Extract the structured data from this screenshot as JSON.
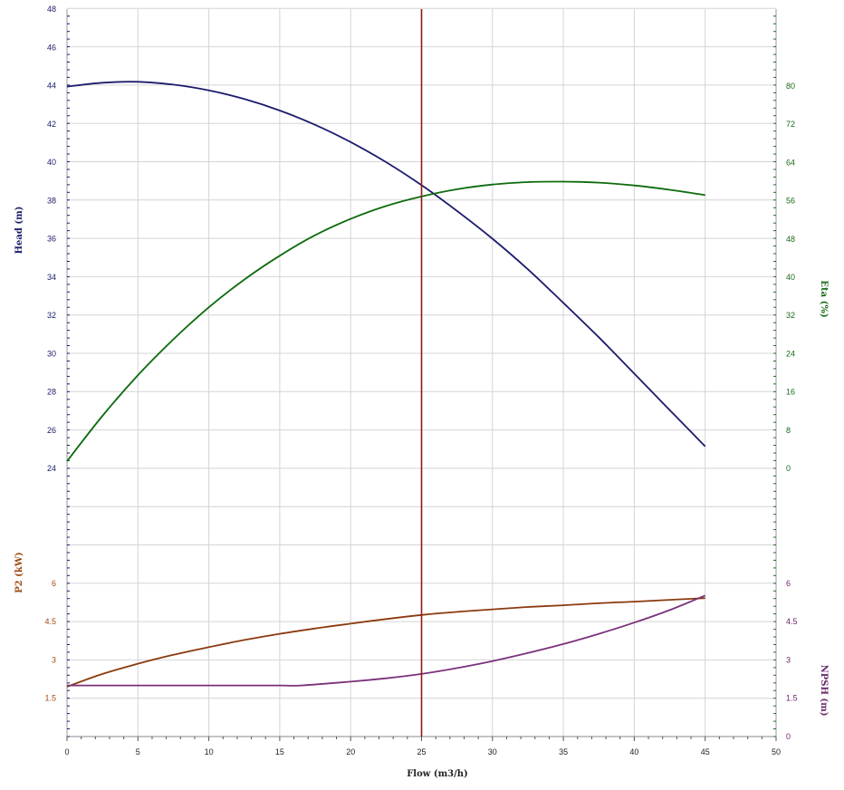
{
  "chart_data": {
    "type": "line",
    "xlabel": "Flow (m3/h)",
    "x_ticks": [
      "0",
      "5",
      "10",
      "15",
      "20",
      "25",
      "30",
      "35",
      "40",
      "45",
      "50"
    ],
    "xlim": [
      0,
      50
    ],
    "grid": true,
    "duty_point_x": 25,
    "panels": [
      {
        "name": "upper",
        "left_axis": {
          "label": "Head (m)",
          "color": "#1a1a6b",
          "ylim": [
            24,
            48
          ],
          "ticks": [
            "24",
            "26",
            "28",
            "30",
            "32",
            "34",
            "36",
            "38",
            "40",
            "42",
            "44",
            "46",
            "48"
          ]
        },
        "right_axis": {
          "label": "Eta (%)",
          "color": "#1a6b1a",
          "ylim": [
            0,
            80
          ],
          "ticks": [
            "0",
            "8",
            "16",
            "24",
            "32",
            "40",
            "48",
            "56",
            "64",
            "72",
            "80"
          ]
        },
        "series": [
          {
            "axis": "left",
            "color": "#1c1c6e",
            "x": [
              0,
              2.5,
              5,
              7.5,
              10,
              12.5,
              15,
              17.5,
              20,
              22.5,
              25,
              27.5,
              30,
              32.5,
              35,
              37.5,
              40,
              42.5,
              45
            ],
            "y": [
              43.95,
              44.15,
              44.2,
              44.05,
              43.75,
              43.3,
              42.7,
              41.95,
              41.05,
              40.0,
              38.8,
              37.45,
              36.0,
              34.4,
              32.65,
              30.85,
              28.95,
              27.05,
              25.15
            ]
          },
          {
            "axis": "right",
            "color": "#0d6b0d",
            "x": [
              0,
              2.5,
              5,
              7.5,
              10,
              12.5,
              15,
              17.5,
              20,
              22.5,
              25,
              27.5,
              30,
              32.5,
              35,
              37.5,
              40,
              42.5,
              45
            ],
            "y": [
              1.5,
              11.0,
              19.5,
              27.0,
              33.7,
              39.5,
              44.5,
              48.8,
              52.2,
              54.9,
              56.9,
              58.4,
              59.4,
              59.9,
              60.0,
              59.8,
              59.2,
              58.3,
              57.2
            ]
          }
        ]
      },
      {
        "name": "lower",
        "left_axis": {
          "label": "P2 (kW)",
          "color": "#a04a12",
          "ylim": [
            0,
            6.5
          ],
          "ticks": [
            "1.5",
            "3",
            "4.5",
            "6"
          ]
        },
        "right_axis": {
          "label": "NPSH (m)",
          "color": "#6a2a6a",
          "ylim": [
            0,
            8.5
          ],
          "ticks": [
            "0",
            "1.5",
            "3",
            "4.5",
            "6"
          ]
        },
        "series": [
          {
            "axis": "left",
            "color": "#8b3a0e",
            "x": [
              0,
              2.5,
              5,
              7.5,
              10,
              12.5,
              15,
              17.5,
              20,
              22.5,
              25,
              27.5,
              30,
              32.5,
              35,
              37.5,
              40,
              42.5,
              45
            ],
            "y": [
              1.95,
              2.45,
              2.85,
              3.2,
              3.5,
              3.78,
              4.02,
              4.23,
              4.42,
              4.6,
              4.76,
              4.88,
              4.98,
              5.07,
              5.14,
              5.22,
              5.28,
              5.35,
              5.42
            ]
          },
          {
            "axis": "right",
            "color": "#7a327a",
            "x": [
              0,
              2.5,
              5,
              7.5,
              10,
              12.5,
              15,
              16.5,
              20,
              22.5,
              25,
              27.5,
              30,
              32.5,
              35,
              37.5,
              40,
              42.5,
              45
            ],
            "y": [
              2.0,
              2.0,
              2.0,
              2.0,
              2.0,
              2.0,
              2.0,
              2.0,
              2.15,
              2.28,
              2.45,
              2.68,
              2.95,
              3.27,
              3.62,
              4.02,
              4.46,
              4.95,
              5.52
            ]
          }
        ]
      }
    ]
  }
}
